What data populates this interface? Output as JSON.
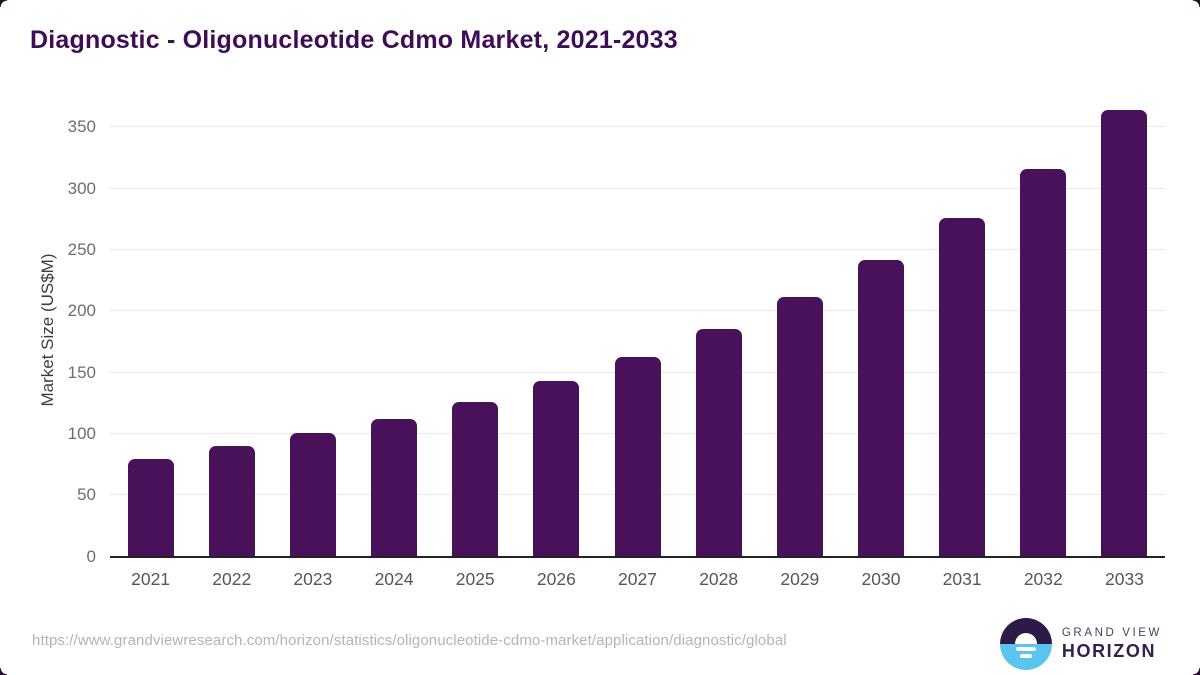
{
  "title": "Diagnostic - Oligonucleotide Cdmo Market, 2021-2033",
  "source_url": "https://www.grandviewresearch.com/horizon/statistics/oligonucleotide-cdmo-market/application/diagnostic/global",
  "logo": {
    "line1": "GRAND VIEW",
    "line2": "HORIZON"
  },
  "colors": {
    "bar": "#481159",
    "title": "#3e0d55",
    "gridline": "#e9e9e9",
    "axis_line": "#222222",
    "tick_label": "#6e6e6e",
    "logo_dark": "#2e1a47",
    "logo_blue": "#5bc5ef"
  },
  "chart_data": {
    "type": "bar",
    "title": "Diagnostic - Oligonucleotide Cdmo Market, 2021-2033",
    "categories": [
      "2021",
      "2022",
      "2023",
      "2024",
      "2025",
      "2026",
      "2027",
      "2028",
      "2029",
      "2030",
      "2031",
      "2032",
      "2033"
    ],
    "values": [
      80,
      90,
      101,
      112,
      126,
      143,
      163,
      186,
      212,
      242,
      276,
      316,
      364
    ],
    "xlabel": "",
    "ylabel": "Market Size (US$M)",
    "ylim": [
      0,
      350
    ],
    "ytick_interval": 50,
    "yticks": [
      "0",
      "50",
      "100",
      "150",
      "200",
      "250",
      "300",
      "350"
    ],
    "grid": "horizontal",
    "legend": "none",
    "bar_color": "#481159"
  }
}
